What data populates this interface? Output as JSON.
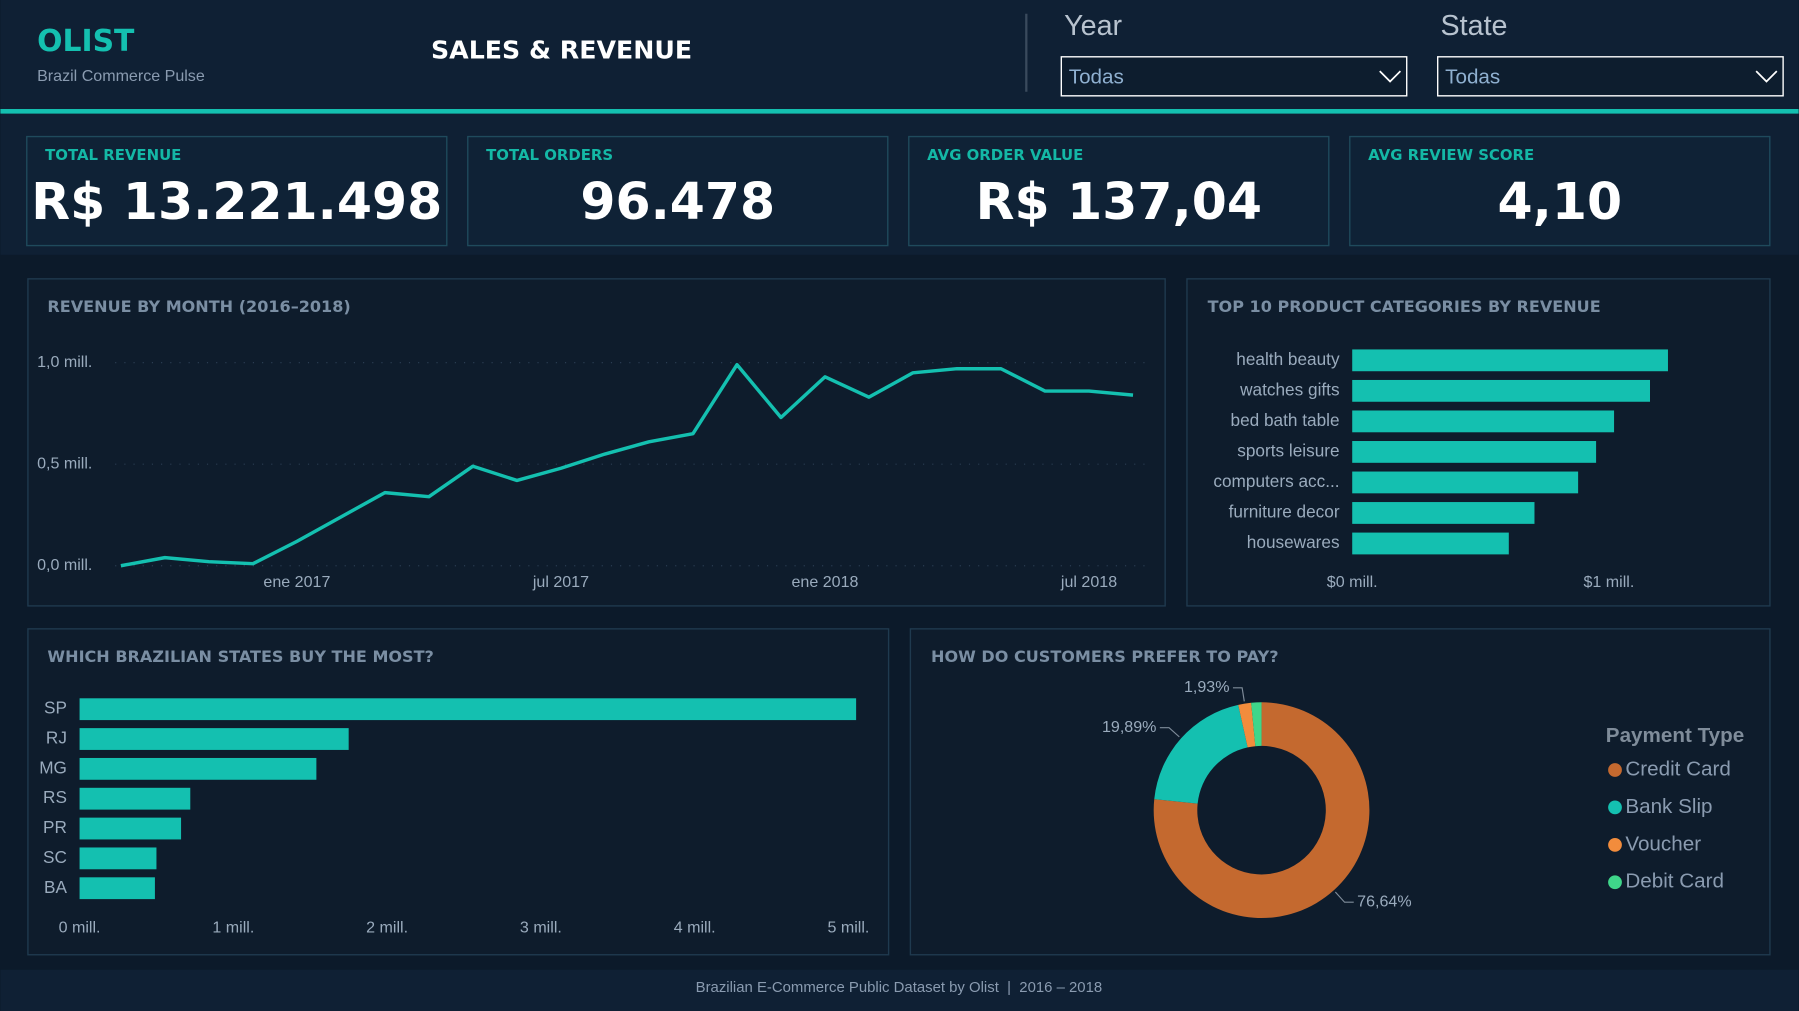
{
  "header": {
    "brand": "OLIST",
    "tagline": "Brazil Commerce Pulse",
    "title": "SALES & REVENUE"
  },
  "filters": [
    {
      "label": "Year",
      "value": "Todas"
    },
    {
      "label": "State",
      "value": "Todas"
    }
  ],
  "kpis": [
    {
      "label": "TOTAL REVENUE",
      "value": "R$ 13.221.498"
    },
    {
      "label": "TOTAL ORDERS",
      "value": "96.478"
    },
    {
      "label": "AVG ORDER VALUE",
      "value": "R$ 137,04"
    },
    {
      "label": "AVG REVIEW SCORE",
      "value": "4,10"
    }
  ],
  "chart_data": [
    {
      "type": "line",
      "title": "REVENUE BY MONTH (2016–2018)",
      "color": "#14c0b0",
      "grid": true,
      "x": [
        "2016-09",
        "2016-10",
        "2016-11",
        "2016-12",
        "2017-01",
        "2017-02",
        "2017-03",
        "2017-04",
        "2017-05",
        "2017-06",
        "2017-07",
        "2017-08",
        "2017-09",
        "2017-10",
        "2017-11",
        "2017-12",
        "2018-01",
        "2018-02",
        "2018-03",
        "2018-04",
        "2018-05",
        "2018-06",
        "2018-07",
        "2018-08"
      ],
      "values": [
        0,
        0.04,
        0.02,
        0.01,
        0.12,
        0.24,
        0.36,
        0.34,
        0.49,
        0.42,
        0.48,
        0.55,
        0.61,
        0.65,
        0.99,
        0.73,
        0.93,
        0.83,
        0.95,
        0.97,
        0.97,
        0.86,
        0.86,
        0.84
      ],
      "xlim": [
        "2016-09",
        "2018-08"
      ],
      "xticks": [
        {
          "value": "2017-01",
          "label": "ene 2017"
        },
        {
          "value": "2017-07",
          "label": "jul 2017"
        },
        {
          "value": "2018-01",
          "label": "ene 2018"
        },
        {
          "value": "2018-07",
          "label": "jul 2018"
        }
      ],
      "ylim": [
        0,
        1
      ],
      "yticks": [
        {
          "value": 0,
          "label": "0,0 mill."
        },
        {
          "value": 0.5,
          "label": "0,5 mill."
        },
        {
          "value": 1,
          "label": "1,0 mill."
        }
      ]
    },
    {
      "type": "hbar",
      "title": "TOP 10 PRODUCT CATEGORIES BY REVENUE",
      "color": "#14c0b0",
      "categories": [
        "health beauty",
        "watches gifts",
        "bed bath table",
        "sports leisure",
        "computers acc...",
        "furniture decor",
        "housewares"
      ],
      "values": [
        1.23,
        1.16,
        1.02,
        0.95,
        0.88,
        0.71,
        0.61
      ],
      "xlim": [
        0,
        1.35
      ],
      "xticks": [
        {
          "value": 0,
          "label": "$0 mill."
        },
        {
          "value": 1,
          "label": "$1 mill."
        }
      ]
    },
    {
      "type": "hbar",
      "title": "WHICH BRAZILIAN STATES BUY THE MOST?",
      "color": "#14c0b0",
      "categories": [
        "SP",
        "RJ",
        "MG",
        "RS",
        "PR",
        "SC",
        "BA"
      ],
      "values": [
        5.05,
        1.75,
        1.54,
        0.72,
        0.66,
        0.5,
        0.49
      ],
      "xlim": [
        0,
        5.1
      ],
      "xticks": [
        {
          "value": 0,
          "label": "0 mill."
        },
        {
          "value": 1,
          "label": "1 mill."
        },
        {
          "value": 2,
          "label": "2 mill."
        },
        {
          "value": 3,
          "label": "3 mill."
        },
        {
          "value": 4,
          "label": "4 mill."
        },
        {
          "value": 5,
          "label": "5 mill."
        }
      ]
    },
    {
      "type": "donut",
      "title": "HOW DO CUSTOMERS PREFER TO PAY?",
      "legend_title": "Payment Type",
      "categories": [
        "Credit Card",
        "Bank Slip",
        "Voucher",
        "Debit Card"
      ],
      "values": [
        76.64,
        19.89,
        1.93,
        1.54
      ],
      "value_labels": [
        "76,64%",
        "19,89%",
        "1,93%",
        null
      ],
      "colors": [
        "#c4692f",
        "#14c0b0",
        "#f28c3c",
        "#3fd68a"
      ]
    }
  ],
  "footer": "Brazilian E-Commerce Public Dataset by Olist  |  2016 – 2018"
}
